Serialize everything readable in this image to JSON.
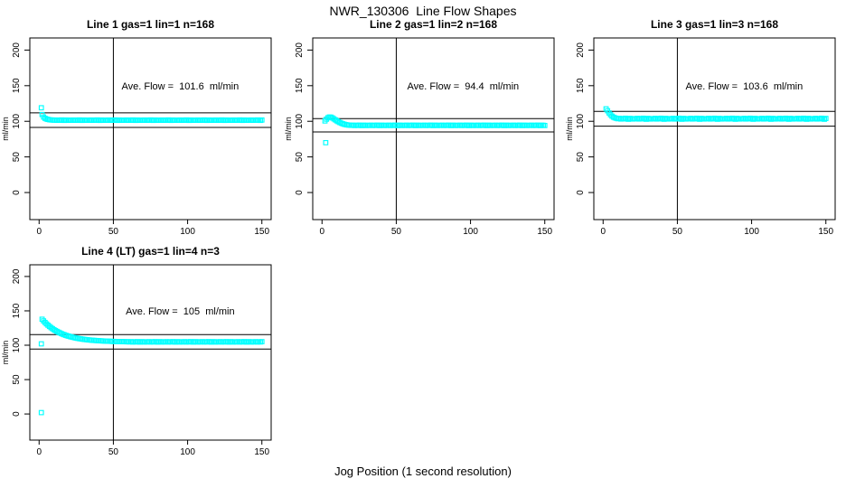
{
  "figure": {
    "title": "NWR_130306  Line Flow Shapes",
    "xlabel": "Jog Position (1 second resolution)",
    "background": "#FFFFFF",
    "axis_color": "#000000",
    "point_color": "#00FFFF"
  },
  "chart_data": [
    {
      "type": "scatter",
      "title": "Line 1 gas=1 lin=1 n=168",
      "params": {
        "line": 1,
        "gas": 1,
        "lin": 1,
        "n": 168
      },
      "ave_flow": 101.6,
      "ave_label": "Ave. Flow =  101.6  ml/min",
      "ylabel": "ml/min",
      "xticks": [
        0,
        50,
        100,
        150
      ],
      "yticks": [
        0,
        50,
        100,
        150,
        200
      ],
      "xlim": [
        -6.25,
        156.25
      ],
      "ylim": [
        -38,
        217
      ],
      "grid": false,
      "vline_x": 50,
      "ref_lines": [
        111.8,
        91.4
      ],
      "label_pos": {
        "x": 95,
        "y": 150
      },
      "marker": "open-square",
      "outliers": [
        [
          1.5,
          119.0
        ]
      ],
      "series": {
        "x_start": 2,
        "x_step": 1,
        "y": [
          109.5,
          106.0,
          104.2,
          103.2,
          102.6,
          102.2,
          101.9,
          101.8,
          101.6,
          101.8,
          101.4,
          101.7,
          101.5,
          101.9,
          101.6,
          101.3,
          101.8,
          101.7,
          101.4,
          101.6,
          101.6,
          101.8,
          101.4,
          101.7,
          101.5,
          101.9,
          101.6,
          101.3,
          101.8,
          101.7,
          101.4,
          101.6,
          101.6,
          101.8,
          101.4,
          101.7,
          101.5,
          101.9,
          101.6,
          101.3,
          101.8,
          101.7,
          101.4,
          101.6,
          101.6,
          101.8,
          101.4,
          101.7,
          101.5,
          101.9,
          101.6,
          101.3,
          101.8,
          101.7,
          101.4,
          101.6,
          101.6,
          101.8,
          101.4,
          101.7,
          101.5,
          101.9,
          101.6,
          101.3,
          101.8,
          101.7,
          101.4,
          101.6,
          101.6,
          101.8,
          101.4,
          101.7,
          101.5,
          101.9,
          101.6,
          101.3,
          101.8,
          101.7,
          101.4,
          101.6,
          101.6,
          101.8,
          101.4,
          101.7,
          101.5,
          101.9,
          101.6,
          101.3,
          101.8,
          101.7,
          101.4,
          101.6,
          101.6,
          101.8,
          101.4,
          101.7,
          101.5,
          101.9,
          101.6,
          101.3,
          101.8,
          101.7,
          101.4,
          101.6,
          101.6,
          101.8,
          101.4,
          101.7,
          101.5,
          101.9,
          101.6,
          101.3,
          101.8,
          101.7,
          101.4,
          101.6,
          101.6,
          101.8,
          101.4,
          101.7,
          101.5,
          101.9,
          101.6,
          101.3,
          101.8,
          101.7,
          101.4,
          101.6,
          101.6,
          101.8,
          101.4,
          101.7,
          101.5,
          101.9,
          101.6,
          101.3,
          101.8,
          101.7,
          101.4,
          101.6,
          101.6,
          101.8,
          101.4,
          101.7,
          101.5,
          101.9,
          101.6,
          101.3,
          101.8
        ]
      }
    },
    {
      "type": "scatter",
      "title": "Line 2 gas=1 lin=2 n=168",
      "params": {
        "line": 2,
        "gas": 1,
        "lin": 2,
        "n": 168
      },
      "ave_flow": 94.4,
      "ave_label": "Ave. Flow =  94.4  ml/min",
      "ylabel": "ml/min",
      "xticks": [
        0,
        50,
        100,
        150
      ],
      "yticks": [
        0,
        50,
        100,
        150,
        200
      ],
      "xlim": [
        -6.25,
        156.25
      ],
      "ylim": [
        -38,
        217
      ],
      "grid": false,
      "vline_x": 50,
      "ref_lines": [
        103.8,
        85.0
      ],
      "label_pos": {
        "x": 95,
        "y": 150
      },
      "marker": "open-square",
      "outliers": [
        [
          2.5,
          70.0
        ]
      ],
      "series": {
        "x_start": 2,
        "x_step": 1,
        "y": [
          100.5,
          103.0,
          105.0,
          106.0,
          105.8,
          104.8,
          103.4,
          102.0,
          100.6,
          99.4,
          98.3,
          97.3,
          96.5,
          95.8,
          95.3,
          94.9,
          94.7,
          94.5,
          94.3,
          94.5,
          94.1,
          94.4,
          94.2,
          94.6,
          94.3,
          94.0,
          94.5,
          94.4,
          94.1,
          94.3,
          94.3,
          94.5,
          94.1,
          94.4,
          94.2,
          94.6,
          94.3,
          94.0,
          94.5,
          94.4,
          94.1,
          94.3,
          94.3,
          94.5,
          94.1,
          94.4,
          94.2,
          94.6,
          94.3,
          94.0,
          94.5,
          94.4,
          94.1,
          94.3,
          94.3,
          94.5,
          94.1,
          94.4,
          94.2,
          94.6,
          94.3,
          94.0,
          94.5,
          94.4,
          94.1,
          94.3,
          94.3,
          94.5,
          94.1,
          94.4,
          94.2,
          94.6,
          94.3,
          94.0,
          94.5,
          94.4,
          94.1,
          94.3,
          94.3,
          94.5,
          94.1,
          94.4,
          94.2,
          94.6,
          94.3,
          94.0,
          94.5,
          94.4,
          94.1,
          94.3,
          94.3,
          94.5,
          94.1,
          94.4,
          94.2,
          94.6,
          94.3,
          94.0,
          94.5,
          94.4,
          94.1,
          94.3,
          94.3,
          94.5,
          94.1,
          94.4,
          94.2,
          94.6,
          94.3,
          94.0,
          94.5,
          94.4,
          94.1,
          94.3,
          94.3,
          94.5,
          94.1,
          94.4,
          94.2,
          94.6,
          94.3,
          94.0,
          94.5,
          94.4,
          94.1,
          94.3,
          94.3,
          94.5,
          94.1,
          94.4,
          94.2,
          94.6,
          94.3,
          94.0,
          94.5,
          94.4,
          94.1,
          94.3,
          94.3,
          94.5,
          94.1,
          94.4,
          94.2,
          94.6,
          94.3,
          94.0,
          94.5,
          94.4,
          94.1
        ]
      }
    },
    {
      "type": "scatter",
      "title": "Line 3 gas=1 lin=3 n=168",
      "params": {
        "line": 3,
        "gas": 1,
        "lin": 3,
        "n": 168
      },
      "ave_flow": 103.6,
      "ave_label": "Ave. Flow =  103.6  ml/min",
      "ylabel": "ml/min",
      "xticks": [
        0,
        50,
        100,
        150
      ],
      "yticks": [
        0,
        50,
        100,
        150,
        200
      ],
      "xlim": [
        -6.25,
        156.25
      ],
      "ylim": [
        -38,
        217
      ],
      "grid": false,
      "vline_x": 50,
      "ref_lines": [
        114.0,
        93.2
      ],
      "label_pos": {
        "x": 95,
        "y": 150
      },
      "marker": "open-square",
      "outliers": [],
      "series": {
        "x_start": 2,
        "x_step": 1,
        "y": [
          117.5,
          114.8,
          111.8,
          109.2,
          107.2,
          105.8,
          104.8,
          104.2,
          103.6,
          104.1,
          103.2,
          103.8,
          103.4,
          104.3,
          103.6,
          102.9,
          104.0,
          103.8,
          103.2,
          103.6,
          103.6,
          104.1,
          103.2,
          103.8,
          103.4,
          104.3,
          103.6,
          102.9,
          104.0,
          103.8,
          103.2,
          103.6,
          103.6,
          104.1,
          103.2,
          103.8,
          103.4,
          104.3,
          103.6,
          102.9,
          104.0,
          103.8,
          103.2,
          103.6,
          103.6,
          104.1,
          103.2,
          103.8,
          103.4,
          104.3,
          103.6,
          102.9,
          104.0,
          103.8,
          103.2,
          103.6,
          103.6,
          104.1,
          103.2,
          103.8,
          103.4,
          104.3,
          103.6,
          102.9,
          104.0,
          103.8,
          103.2,
          103.6,
          103.6,
          104.1,
          103.2,
          103.8,
          103.4,
          104.3,
          103.6,
          102.9,
          104.0,
          103.8,
          103.2,
          103.6,
          103.6,
          104.1,
          103.2,
          103.8,
          103.4,
          104.3,
          103.6,
          102.9,
          104.0,
          103.8,
          103.2,
          103.6,
          103.6,
          104.1,
          103.2,
          103.8,
          103.4,
          104.3,
          103.6,
          102.9,
          104.0,
          103.8,
          103.2,
          103.6,
          103.6,
          104.1,
          103.2,
          103.8,
          103.4,
          104.3,
          103.6,
          102.9,
          104.0,
          103.8,
          103.2,
          103.6,
          103.6,
          104.1,
          103.2,
          103.8,
          103.4,
          104.3,
          103.6,
          102.9,
          104.0,
          103.8,
          103.2,
          103.6,
          103.6,
          104.1,
          103.2,
          103.8,
          103.4,
          104.3,
          103.6,
          102.9,
          104.0,
          103.8,
          103.2,
          103.6,
          103.6,
          104.1,
          103.2,
          103.8,
          103.4,
          104.3,
          103.6,
          102.9,
          104.0
        ]
      }
    },
    {
      "type": "scatter",
      "title": "Line 4 (LT) gas=1 lin=4 n=3",
      "params": {
        "line": 4,
        "lt": true,
        "gas": 1,
        "lin": 4,
        "n": 3
      },
      "ave_flow": 105,
      "ave_label": "Ave. Flow =  105  ml/min",
      "ylabel": "ml/min",
      "xticks": [
        0,
        50,
        100,
        150
      ],
      "yticks": [
        0,
        50,
        100,
        150,
        200
      ],
      "xlim": [
        -6.25,
        156.25
      ],
      "ylim": [
        -38,
        217
      ],
      "grid": false,
      "vline_x": 50,
      "ref_lines": [
        115.5,
        94.5
      ],
      "label_pos": {
        "x": 95,
        "y": 150
      },
      "marker": "open-square",
      "outliers": [
        [
          1.5,
          102.0
        ],
        [
          1.5,
          2.0
        ]
      ],
      "series": {
        "x_start": 2,
        "x_step": 1,
        "y": [
          137.8,
          135.4,
          133.1,
          131.0,
          129.1,
          127.3,
          125.6,
          124.1,
          122.6,
          121.3,
          120.1,
          119.0,
          117.9,
          116.9,
          116.0,
          115.2,
          114.4,
          113.7,
          113.1,
          112.5,
          111.9,
          111.4,
          110.9,
          110.4,
          110.0,
          109.6,
          109.3,
          108.9,
          108.6,
          108.3,
          108.1,
          107.8,
          107.6,
          107.4,
          107.2,
          107.0,
          106.9,
          106.7,
          106.6,
          106.4,
          106.3,
          106.2,
          106.1,
          106.0,
          105.9,
          105.8,
          105.7,
          105.6,
          105.5,
          105.5,
          105.4,
          105.3,
          105.3,
          105.2,
          105.2,
          105.1,
          105.1,
          105.0,
          105.0,
          104.9,
          105.1,
          104.7,
          105.0,
          104.8,
          105.2,
          104.9,
          104.6,
          105.1,
          105.0,
          104.7,
          104.9,
          104.9,
          105.1,
          104.7,
          105.0,
          104.8,
          105.2,
          104.9,
          104.6,
          105.1,
          105.0,
          104.7,
          104.9,
          104.9,
          105.1,
          104.7,
          105.0,
          104.8,
          105.2,
          104.9,
          104.6,
          105.1,
          105.0,
          104.7,
          104.9,
          104.9,
          105.1,
          104.7,
          105.0,
          104.8,
          105.2,
          104.9,
          104.6,
          105.1,
          105.0,
          104.7,
          104.9,
          104.9,
          105.1,
          104.7,
          105.0,
          104.8,
          105.2,
          104.9,
          104.6,
          105.1,
          105.0,
          104.7,
          104.9,
          104.9,
          105.1,
          104.7,
          105.0,
          104.8,
          105.2,
          104.9,
          104.6,
          105.1,
          105.0,
          104.7,
          104.9,
          104.9,
          105.1,
          104.7,
          105.0,
          104.8,
          105.2,
          104.9,
          104.6,
          105.1,
          105.0,
          104.7,
          104.9,
          104.9,
          105.1,
          104.7,
          105.0,
          104.8,
          105.2
        ]
      }
    }
  ]
}
